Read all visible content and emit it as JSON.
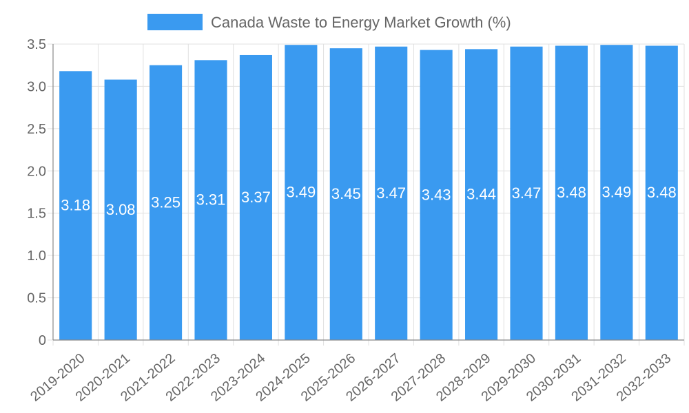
{
  "chart_data": {
    "type": "bar",
    "title": "",
    "xlabel": "",
    "ylabel": "",
    "legend": {
      "label": "Canada Waste to Energy Market Growth (%)",
      "position": "top-center"
    },
    "categories": [
      "2019-2020",
      "2020-2021",
      "2021-2022",
      "2022-2023",
      "2023-2024",
      "2024-2025",
      "2025-2026",
      "2026-2027",
      "2027-2028",
      "2028-2029",
      "2029-2030",
      "2030-2031",
      "2031-2032",
      "2032-2033"
    ],
    "series": [
      {
        "name": "Canada Waste to Energy Market Growth (%)",
        "values": [
          3.18,
          3.08,
          3.25,
          3.31,
          3.37,
          3.49,
          3.45,
          3.47,
          3.43,
          3.44,
          3.47,
          3.48,
          3.49,
          3.48
        ]
      }
    ],
    "ylim": [
      0,
      3.5
    ],
    "yticks": [
      "0",
      "0.5",
      "1.0",
      "1.5",
      "2.0",
      "2.5",
      "3.0",
      "3.5"
    ],
    "grid": true,
    "colors": {
      "bar": "#3a9af0",
      "grid": "#e0e0e0",
      "axis": "#666666",
      "text": "#666666",
      "label": "#ffffff"
    }
  }
}
